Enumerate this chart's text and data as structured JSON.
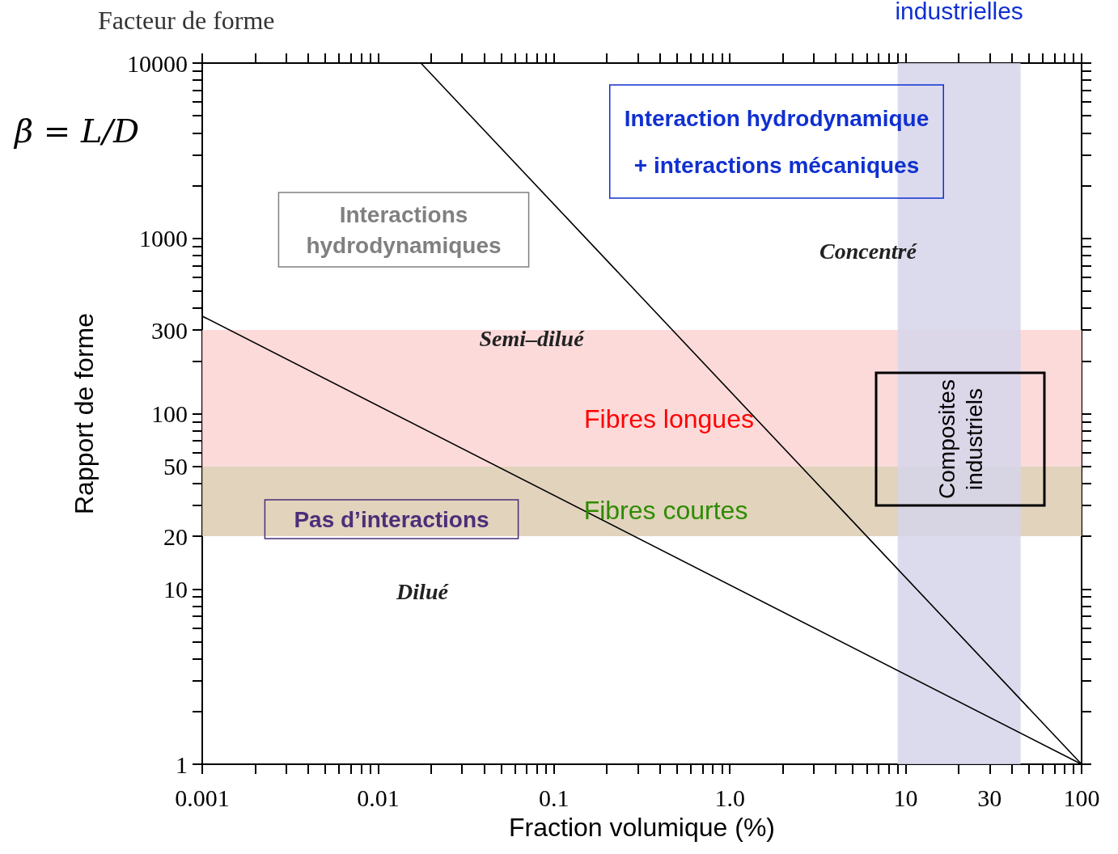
{
  "chart_data": {
    "type": "line",
    "title": "Facteur de forme",
    "xlabel": "Fraction volumique (%)",
    "ylabel": "Rapport de forme",
    "log": "xy",
    "grid": false,
    "marker": "none",
    "line_style": "solid",
    "xlim": [
      0.001,
      100
    ],
    "xticks": [
      {
        "value": 0.001,
        "label": "0.001"
      },
      {
        "value": 0.002,
        "label": null
      },
      {
        "value": 0.003,
        "label": null
      },
      {
        "value": 0.004,
        "label": null
      },
      {
        "value": 0.005,
        "label": null
      },
      {
        "value": 0.006,
        "label": null
      },
      {
        "value": 0.007,
        "label": null
      },
      {
        "value": 0.008,
        "label": null
      },
      {
        "value": 0.009,
        "label": null
      },
      {
        "value": 0.01,
        "label": "0.01"
      },
      {
        "value": 0.02,
        "label": null
      },
      {
        "value": 0.03,
        "label": null
      },
      {
        "value": 0.04,
        "label": null
      },
      {
        "value": 0.05,
        "label": null
      },
      {
        "value": 0.06,
        "label": null
      },
      {
        "value": 0.07,
        "label": null
      },
      {
        "value": 0.08,
        "label": null
      },
      {
        "value": 0.09,
        "label": null
      },
      {
        "value": 0.1,
        "label": "0.1"
      },
      {
        "value": 0.2,
        "label": null
      },
      {
        "value": 0.3,
        "label": null
      },
      {
        "value": 0.4,
        "label": null
      },
      {
        "value": 0.5,
        "label": null
      },
      {
        "value": 0.6,
        "label": null
      },
      {
        "value": 0.7,
        "label": null
      },
      {
        "value": 0.8,
        "label": null
      },
      {
        "value": 0.9,
        "label": null
      },
      {
        "value": 1,
        "label": "1.0"
      },
      {
        "value": 2,
        "label": null
      },
      {
        "value": 3,
        "label": null
      },
      {
        "value": 4,
        "label": null
      },
      {
        "value": 5,
        "label": null
      },
      {
        "value": 6,
        "label": null
      },
      {
        "value": 7,
        "label": null
      },
      {
        "value": 8,
        "label": null
      },
      {
        "value": 9,
        "label": null
      },
      10,
      {
        "value": 20,
        "label": null
      },
      30,
      {
        "value": 40,
        "label": null
      },
      {
        "value": 50,
        "label": null
      },
      {
        "value": 60,
        "label": null
      },
      {
        "value": 70,
        "label": null
      },
      {
        "value": 80,
        "label": null
      },
      {
        "value": 90,
        "label": null
      },
      100
    ],
    "ylim": [
      1,
      10000
    ],
    "yticks": [
      1,
      {
        "value": 2,
        "label": null
      },
      {
        "value": 3,
        "label": null
      },
      {
        "value": 4,
        "label": null
      },
      {
        "value": 5,
        "label": null
      },
      {
        "value": 6,
        "label": null
      },
      {
        "value": 7,
        "label": null
      },
      {
        "value": 8,
        "label": null
      },
      {
        "value": 9,
        "label": null
      },
      10,
      20,
      {
        "value": 30,
        "label": null
      },
      {
        "value": 40,
        "label": null
      },
      50,
      {
        "value": 60,
        "label": null
      },
      {
        "value": 70,
        "label": null
      },
      {
        "value": 80,
        "label": null
      },
      {
        "value": 90,
        "label": null
      },
      100,
      {
        "value": 200,
        "label": null
      },
      300,
      {
        "value": 400,
        "label": null
      },
      {
        "value": 500,
        "label": null
      },
      {
        "value": 600,
        "label": null
      },
      {
        "value": 700,
        "label": null
      },
      {
        "value": 800,
        "label": null
      },
      {
        "value": 900,
        "label": null
      },
      1000,
      {
        "value": 2000,
        "label": null
      },
      {
        "value": 3000,
        "label": null
      },
      {
        "value": 4000,
        "label": null
      },
      {
        "value": 5000,
        "label": null
      },
      {
        "value": 6000,
        "label": null
      },
      {
        "value": 7000,
        "label": null
      },
      {
        "value": 8000,
        "label": null
      },
      {
        "value": 9000,
        "label": null
      },
      10000
    ],
    "series": [
      {
        "color": "#000000",
        "x": [
          0.001,
          100
        ],
        "values": [
          360,
          1
        ]
      },
      {
        "color": "#000000",
        "x": [
          0.0175,
          100
        ],
        "values": [
          10000,
          1
        ]
      }
    ],
    "bands": [
      {
        "axis": "y",
        "from": 50,
        "to": 300,
        "label": null,
        "color": "#fcd4d4"
      },
      {
        "axis": "y",
        "from": 20,
        "to": 50,
        "label": null,
        "color": "#dccbb0"
      },
      {
        "axis": "x",
        "from": 9,
        "to": 45,
        "label": "industrielles",
        "color": "#d5d5ea"
      }
    ],
    "annotations": [
      "β = L/D",
      "Interactions\nhydrodynamiques",
      "Interaction hydrodynamique\n+ interactions mécaniques",
      "Concentré",
      "Semi–dilué",
      "Fibres longues",
      "Fibres courtes",
      "Pas d’interactions",
      "Dilué",
      "Composites\nindustriels"
    ]
  }
}
